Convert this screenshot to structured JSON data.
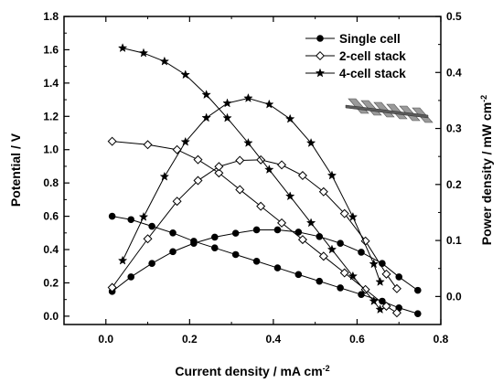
{
  "chart_data": {
    "type": "line",
    "xlabel": "Current density / mA cm",
    "xlabel_sup": "-2",
    "ylabel": "Potential / V",
    "y2label": "Power density / mW cm",
    "y2label_sup": "-2",
    "xlim": [
      -0.1,
      0.8
    ],
    "ylim": [
      -0.05,
      1.8
    ],
    "y2lim": [
      -0.05,
      0.5
    ],
    "xticks": [
      "0.0",
      "0.2",
      "0.4",
      "0.6",
      "0.8"
    ],
    "yticks": [
      "0.0",
      "0.2",
      "0.4",
      "0.6",
      "0.8",
      "1.0",
      "1.2",
      "1.4",
      "1.6",
      "1.8"
    ],
    "y2ticks": [
      "0.0",
      "0.1",
      "0.2",
      "0.3",
      "0.4",
      "0.5"
    ],
    "grid": false,
    "legend_position": "top-right",
    "series": [
      {
        "name": "Single cell",
        "marker": "filled-circle",
        "axis": "left",
        "kind": "polarization",
        "x": [
          0.015,
          0.06,
          0.11,
          0.16,
          0.21,
          0.26,
          0.31,
          0.36,
          0.41,
          0.46,
          0.51,
          0.56,
          0.61,
          0.66,
          0.7,
          0.745
        ],
        "y": [
          0.6,
          0.58,
          0.54,
          0.5,
          0.45,
          0.41,
          0.37,
          0.33,
          0.29,
          0.25,
          0.21,
          0.17,
          0.13,
          0.09,
          0.05,
          0.015
        ]
      },
      {
        "name": "Single cell",
        "marker": "filled-circle",
        "axis": "right",
        "kind": "power",
        "x": [
          0.015,
          0.06,
          0.11,
          0.16,
          0.21,
          0.26,
          0.31,
          0.36,
          0.41,
          0.46,
          0.51,
          0.56,
          0.61,
          0.66,
          0.7,
          0.745
        ],
        "y": [
          0.009,
          0.035,
          0.059,
          0.08,
          0.095,
          0.106,
          0.113,
          0.119,
          0.119,
          0.115,
          0.107,
          0.095,
          0.079,
          0.059,
          0.035,
          0.011
        ]
      },
      {
        "name": "2-cell stack",
        "marker": "open-diamond",
        "axis": "left",
        "kind": "polarization",
        "x": [
          0.015,
          0.1,
          0.17,
          0.22,
          0.27,
          0.32,
          0.37,
          0.42,
          0.47,
          0.52,
          0.57,
          0.62,
          0.67,
          0.695
        ],
        "y": [
          1.05,
          1.03,
          1.0,
          0.94,
          0.86,
          0.76,
          0.66,
          0.56,
          0.46,
          0.36,
          0.26,
          0.16,
          0.06,
          0.02
        ]
      },
      {
        "name": "2-cell stack",
        "marker": "open-diamond",
        "axis": "right",
        "kind": "power",
        "x": [
          0.015,
          0.1,
          0.17,
          0.22,
          0.27,
          0.32,
          0.37,
          0.42,
          0.47,
          0.52,
          0.57,
          0.62,
          0.67,
          0.695
        ],
        "y": [
          0.016,
          0.103,
          0.17,
          0.207,
          0.232,
          0.243,
          0.244,
          0.235,
          0.216,
          0.187,
          0.148,
          0.099,
          0.04,
          0.014
        ]
      },
      {
        "name": "4-cell stack",
        "marker": "filled-star",
        "axis": "left",
        "kind": "polarization",
        "x": [
          0.04,
          0.09,
          0.14,
          0.19,
          0.24,
          0.29,
          0.34,
          0.39,
          0.44,
          0.49,
          0.54,
          0.59,
          0.64,
          0.655
        ],
        "y": [
          1.61,
          1.58,
          1.53,
          1.45,
          1.33,
          1.19,
          1.04,
          0.88,
          0.72,
          0.56,
          0.4,
          0.24,
          0.09,
          0.04
        ]
      },
      {
        "name": "4-cell stack",
        "marker": "filled-star",
        "axis": "right",
        "kind": "power",
        "x": [
          0.04,
          0.09,
          0.14,
          0.19,
          0.24,
          0.29,
          0.34,
          0.39,
          0.44,
          0.49,
          0.54,
          0.59,
          0.64,
          0.655
        ],
        "y": [
          0.064,
          0.142,
          0.214,
          0.276,
          0.319,
          0.345,
          0.354,
          0.343,
          0.317,
          0.274,
          0.216,
          0.142,
          0.058,
          0.026
        ]
      }
    ]
  }
}
